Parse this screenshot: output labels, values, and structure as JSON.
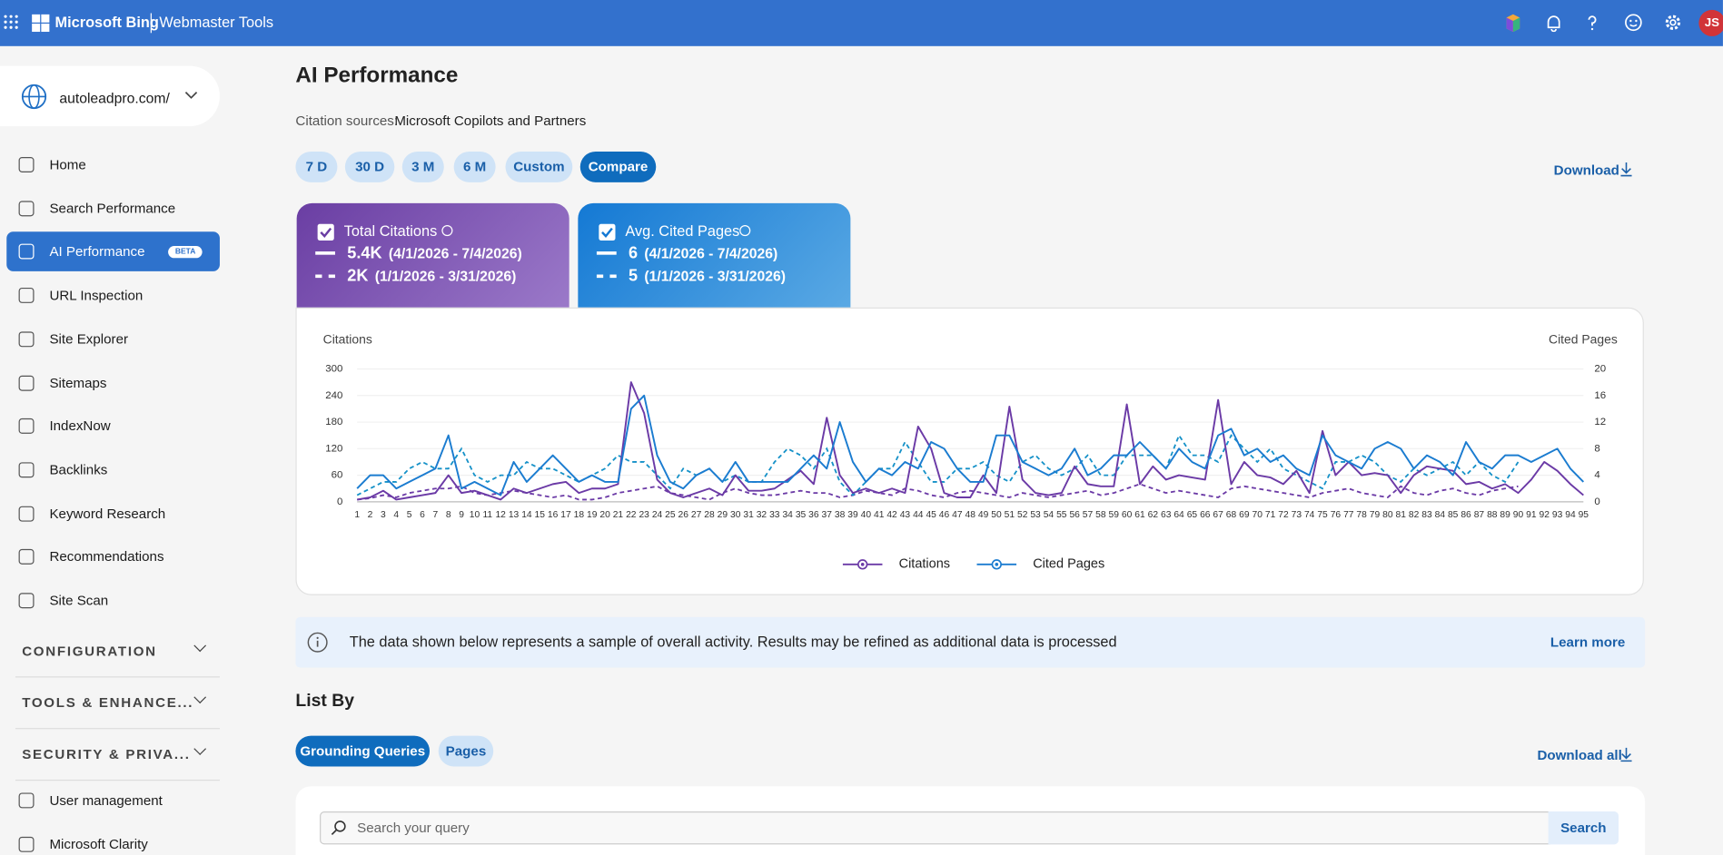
{
  "header": {
    "brand": "Microsoft Bing",
    "product": "Webmaster Tools",
    "avatar": "JS"
  },
  "sidebar": {
    "site": "autoleadpro.com/",
    "nav": [
      "Home",
      "Search Performance",
      "AI Performance",
      "URL Inspection",
      "Site Explorer",
      "Sitemaps",
      "IndexNow",
      "Backlinks",
      "Keyword Research",
      "Recommendations",
      "Site Scan"
    ],
    "badge": "BETA",
    "sections": [
      "CONFIGURATION",
      "TOOLS & ENHANCE...",
      "SECURITY & PRIVA..."
    ],
    "footer_nav": [
      "User management",
      "Microsoft Clarity"
    ]
  },
  "page": {
    "title": "AI Performance",
    "sources_label": "Citation sources:",
    "sources_value": "Microsoft Copilots and Partners",
    "periods": [
      "7 D",
      "30 D",
      "3 M",
      "6 M",
      "Custom",
      "Compare"
    ],
    "download": "Download"
  },
  "cards": [
    {
      "title": "Total Citations",
      "current": "5.4K",
      "current_range": "(4/1/2026 - 7/4/2026)",
      "previous": "2K",
      "previous_range": "(1/1/2026 - 3/31/2026)"
    },
    {
      "title": "Avg. Cited Pages",
      "current": "6",
      "current_range": "(4/1/2026 - 7/4/2026)",
      "previous": "5",
      "previous_range": "(1/1/2026 - 3/31/2026)"
    }
  ],
  "chart_data": {
    "type": "line",
    "y_label": "Citations",
    "y2_label": "Cited Pages",
    "x": [
      1,
      2,
      3,
      4,
      5,
      6,
      7,
      8,
      9,
      10,
      11,
      12,
      13,
      14,
      15,
      16,
      17,
      18,
      19,
      20,
      21,
      22,
      23,
      24,
      25,
      26,
      27,
      28,
      29,
      30,
      31,
      32,
      33,
      34,
      35,
      36,
      37,
      38,
      39,
      40,
      41,
      42,
      43,
      44,
      45,
      46,
      47,
      48,
      49,
      50,
      51,
      52,
      53,
      54,
      55,
      56,
      57,
      58,
      59,
      60,
      61,
      62,
      63,
      64,
      65,
      66,
      67,
      68,
      69,
      70,
      71,
      72,
      73,
      74,
      75,
      76,
      77,
      78,
      79,
      80,
      81,
      82,
      83,
      84,
      85,
      86,
      87,
      88,
      89,
      90,
      91,
      92,
      93,
      94,
      95
    ],
    "ylim": [
      0,
      300
    ],
    "yticks": [
      0,
      60,
      120,
      180,
      240,
      300
    ],
    "y2lim": [
      0,
      20
    ],
    "y2ticks": [
      0,
      4,
      8,
      12,
      16,
      20
    ],
    "grid": true,
    "series": [
      {
        "name": "Citations",
        "color": "#6b3aa6",
        "compare_color": "#6b3aa6",
        "axis": "y",
        "values": [
          5,
          10,
          25,
          5,
          10,
          15,
          20,
          60,
          20,
          25,
          15,
          5,
          30,
          20,
          30,
          40,
          45,
          20,
          30,
          30,
          40,
          270,
          200,
          50,
          20,
          10,
          20,
          30,
          15,
          60,
          25,
          25,
          30,
          50,
          70,
          40,
          190,
          60,
          20,
          30,
          20,
          30,
          20,
          170,
          120,
          20,
          10,
          10,
          60,
          20,
          215,
          50,
          20,
          15,
          20,
          80,
          40,
          35,
          35,
          220,
          40,
          80,
          50,
          60,
          55,
          50,
          230,
          40,
          90,
          60,
          55,
          40,
          70,
          20,
          160,
          60,
          90,
          60,
          65,
          60,
          20,
          60,
          80,
          75,
          70,
          40,
          45,
          30,
          40,
          20,
          50,
          90,
          70,
          40,
          15
        ],
        "compare_values": [
          5,
          8,
          15,
          10,
          20,
          25,
          30,
          30,
          35,
          20,
          15,
          20,
          25,
          20,
          15,
          10,
          15,
          5,
          5,
          10,
          20,
          25,
          30,
          35,
          20,
          15,
          10,
          5,
          20,
          30,
          20,
          15,
          15,
          20,
          25,
          20,
          20,
          10,
          15,
          25,
          20,
          15,
          30,
          25,
          15,
          10,
          20,
          25,
          20,
          15,
          10,
          20,
          15,
          10,
          15,
          20,
          25,
          15,
          20,
          30,
          40,
          30,
          20,
          25,
          20,
          15,
          10,
          30,
          35,
          30,
          25,
          20,
          15,
          10,
          20,
          25,
          30,
          20,
          15,
          10,
          35,
          20,
          15,
          25,
          30,
          20,
          15,
          25,
          30,
          35,
          null,
          null,
          null,
          null,
          null
        ]
      },
      {
        "name": "Cited Pages",
        "color": "#1b7cd0",
        "compare_color": "#1591c8",
        "axis": "y2",
        "values": [
          2,
          4,
          4,
          2,
          3,
          4,
          5,
          10,
          2,
          3,
          2,
          1,
          6,
          3,
          5,
          7,
          5,
          3,
          4,
          3,
          3,
          14,
          16,
          7,
          3,
          2,
          4,
          5,
          3,
          6,
          3,
          3,
          3,
          3,
          5,
          7,
          5,
          12,
          6,
          3,
          5,
          4,
          6,
          5,
          9,
          8,
          5,
          3,
          3,
          10,
          10,
          6,
          5,
          4,
          5,
          8,
          4,
          5,
          7,
          7,
          9,
          7,
          5,
          8,
          6,
          5,
          10,
          11,
          7,
          8,
          6,
          7,
          5,
          4,
          10,
          7,
          6,
          5,
          8,
          9,
          8,
          5,
          7,
          6,
          4,
          9,
          6,
          5,
          7,
          7,
          6,
          7,
          8,
          5,
          3
        ],
        "compare_values": [
          1,
          2,
          3,
          3,
          5,
          6,
          5,
          5,
          8,
          4,
          3,
          4,
          4,
          6,
          5,
          5,
          4,
          3,
          4,
          5,
          7,
          6,
          6,
          4,
          2,
          5,
          4,
          5,
          3,
          4,
          3,
          3,
          6,
          8,
          7,
          5,
          8,
          3,
          1,
          3,
          5,
          5,
          9,
          6,
          3,
          3,
          5,
          5,
          6,
          4,
          3,
          6,
          7,
          5,
          4,
          5,
          7,
          4,
          4,
          7,
          7,
          7,
          5,
          10,
          7,
          7,
          6,
          10,
          8,
          6,
          8,
          5,
          4,
          3,
          2,
          6,
          6,
          7,
          6,
          4,
          3,
          5,
          4,
          5,
          6,
          4,
          6,
          4,
          3,
          6,
          null,
          null,
          null,
          null,
          null
        ]
      }
    ]
  },
  "notice": {
    "text": "The data shown below represents a sample of overall activity. Results may be refined as additional data is processed",
    "link": "Learn more"
  },
  "list": {
    "title": "List By",
    "tabs": [
      "Grounding Queries",
      "Pages"
    ],
    "download": "Download all",
    "search_placeholder": "Search your query",
    "search_button": "Search"
  }
}
